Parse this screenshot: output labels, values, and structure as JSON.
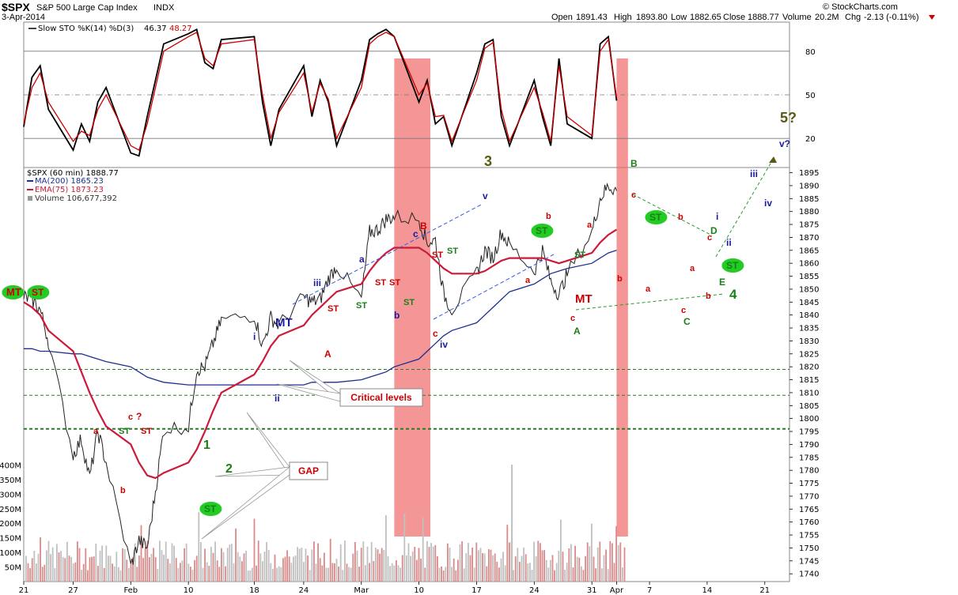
{
  "header": {
    "symbol": "$SPX",
    "name": "S&P 500 Large Cap Index",
    "exchange": "INDX",
    "date": "3-Apr-2014",
    "open_label": "Open",
    "open": "1891.43",
    "high_label": "High",
    "high": "1893.80",
    "low_label": "Low",
    "low": "1882.65",
    "close_label": "Close",
    "close": "1888.77",
    "volume_label": "Volume",
    "volume": "20.2M",
    "chg_label": "Chg",
    "chg": "-2.13 (-0.11%)",
    "watermark": "© StockCharts.com"
  },
  "colors": {
    "price_up": "#000000",
    "price_down": "#cc0000",
    "ma200": "#1f2f8f",
    "ema75": "#cc1a3a",
    "sto_k": "#000000",
    "sto_d": "#cc0000",
    "highlight": "#f06a6a",
    "volume": "#c0c0c0",
    "ellipse": "#22cc22",
    "wave_green": "#1a7f1a",
    "wave_red": "#cc0000",
    "wave_blue": "#1a1aa0",
    "wave_olive": "#5a5a10"
  },
  "chart_data": [
    {
      "type": "line",
      "panel": "Slow Stochastic",
      "legend": "Slow STO %K(14) %D(3) 46.37, 48.27",
      "legend_name": "Slow STO %K(14) %D(3)",
      "legend_k": "46.37",
      "legend_d": "48.27",
      "ylim": [
        0,
        100
      ],
      "yticks": [
        20,
        50,
        80
      ],
      "x": [
        "2014-01-21",
        "2014-01-22",
        "2014-01-23",
        "2014-01-24",
        "2014-01-27",
        "2014-01-28",
        "2014-01-29",
        "2014-01-30",
        "2014-01-31",
        "2014-02-03",
        "2014-02-04",
        "2014-02-05",
        "2014-02-06",
        "2014-02-07",
        "2014-02-10",
        "2014-02-11",
        "2014-02-12",
        "2014-02-13",
        "2014-02-14",
        "2014-02-18",
        "2014-02-19",
        "2014-02-20",
        "2014-02-21",
        "2014-02-24",
        "2014-02-25",
        "2014-02-26",
        "2014-02-27",
        "2014-02-28",
        "2014-03-03",
        "2014-03-04",
        "2014-03-05",
        "2014-03-06",
        "2014-03-07",
        "2014-03-10",
        "2014-03-11",
        "2014-03-12",
        "2014-03-13",
        "2014-03-14",
        "2014-03-17",
        "2014-03-18",
        "2014-03-19",
        "2014-03-20",
        "2014-03-21",
        "2014-03-24",
        "2014-03-25",
        "2014-03-26",
        "2014-03-27",
        "2014-03-28",
        "2014-03-31",
        "2014-04-01",
        "2014-04-02",
        "2014-04-03"
      ],
      "series": [
        {
          "name": "%K",
          "values": [
            28,
            62,
            70,
            40,
            12,
            30,
            18,
            45,
            55,
            10,
            8,
            35,
            60,
            85,
            92,
            95,
            72,
            68,
            88,
            90,
            45,
            15,
            40,
            70,
            35,
            60,
            45,
            15,
            60,
            88,
            92,
            95,
            90,
            45,
            60,
            30,
            35,
            15,
            65,
            85,
            88,
            35,
            15,
            60,
            35,
            15,
            75,
            30,
            20,
            85,
            90,
            46
          ]
        },
        {
          "name": "%D",
          "values": [
            30,
            55,
            65,
            45,
            18,
            25,
            22,
            40,
            50,
            15,
            12,
            30,
            55,
            80,
            90,
            93,
            75,
            70,
            85,
            88,
            50,
            20,
            38,
            65,
            38,
            58,
            47,
            20,
            55,
            85,
            90,
            93,
            90,
            50,
            58,
            35,
            36,
            18,
            60,
            82,
            86,
            40,
            18,
            55,
            38,
            18,
            70,
            35,
            22,
            80,
            88,
            48
          ]
        }
      ]
    },
    {
      "type": "line",
      "panel": "$SPX (60 min)",
      "legend_price": "$SPX (60 min) 1888.77",
      "legend_ma": "MA(200) 1865.23",
      "legend_ema": "EMA(75) 1873.23",
      "legend_vol": "Volume 106,677,392",
      "ylim": [
        1737,
        1897
      ],
      "yticks": [
        1740,
        1745,
        1750,
        1755,
        1760,
        1765,
        1770,
        1775,
        1780,
        1785,
        1790,
        1795,
        1800,
        1805,
        1810,
        1815,
        1820,
        1825,
        1830,
        1835,
        1840,
        1845,
        1850,
        1855,
        1860,
        1865,
        1870,
        1875,
        1880,
        1885,
        1890,
        1895
      ],
      "xticks": [
        "21",
        "27",
        "Feb",
        "10",
        "18",
        "24",
        "Mar",
        "10",
        "17",
        "24",
        "31",
        "Apr",
        "7",
        "14",
        "21"
      ],
      "x": [
        "2014-01-21",
        "2014-01-22",
        "2014-01-23",
        "2014-01-24",
        "2014-01-27",
        "2014-01-28",
        "2014-01-29",
        "2014-01-30",
        "2014-01-31",
        "2014-02-03",
        "2014-02-04",
        "2014-02-05",
        "2014-02-06",
        "2014-02-07",
        "2014-02-10",
        "2014-02-11",
        "2014-02-12",
        "2014-02-13",
        "2014-02-14",
        "2014-02-18",
        "2014-02-19",
        "2014-02-20",
        "2014-02-21",
        "2014-02-24",
        "2014-02-25",
        "2014-02-26",
        "2014-02-27",
        "2014-02-28",
        "2014-03-03",
        "2014-03-04",
        "2014-03-05",
        "2014-03-06",
        "2014-03-07",
        "2014-03-10",
        "2014-03-11",
        "2014-03-12",
        "2014-03-13",
        "2014-03-14",
        "2014-03-17",
        "2014-03-18",
        "2014-03-19",
        "2014-03-20",
        "2014-03-21",
        "2014-03-24",
        "2014-03-25",
        "2014-03-26",
        "2014-03-27",
        "2014-03-28",
        "2014-03-31",
        "2014-04-01",
        "2014-04-02",
        "2014-04-03"
      ],
      "series": [
        {
          "name": "Price",
          "values": [
            1847,
            1846,
            1842,
            1830,
            1786,
            1792,
            1777,
            1795,
            1783,
            1743,
            1753,
            1750,
            1772,
            1796,
            1797,
            1819,
            1820,
            1829,
            1838,
            1840,
            1828,
            1839,
            1836,
            1847,
            1845,
            1846,
            1854,
            1859,
            1846,
            1872,
            1873,
            1877,
            1878,
            1877,
            1868,
            1869,
            1848,
            1842,
            1856,
            1865,
            1862,
            1872,
            1867,
            1857,
            1865,
            1853,
            1848,
            1856,
            1872,
            1885,
            1890,
            1888
          ]
        },
        {
          "name": "MA(200)",
          "values": [
            1827,
            1827,
            1826,
            1826,
            1825,
            1825,
            1824,
            1823,
            1822,
            1820,
            1818,
            1816,
            1815,
            1814,
            1813,
            1813,
            1813,
            1813,
            1813,
            1813,
            1813,
            1813,
            1813,
            1813,
            1814,
            1814,
            1814,
            1814,
            1815,
            1816,
            1817,
            1818,
            1820,
            1823,
            1826,
            1829,
            1832,
            1834,
            1837,
            1840,
            1843,
            1846,
            1849,
            1852,
            1854,
            1856,
            1857,
            1858,
            1860,
            1862,
            1864,
            1865
          ]
        },
        {
          "name": "EMA(75)",
          "values": [
            1845,
            1843,
            1840,
            1834,
            1826,
            1818,
            1810,
            1803,
            1797,
            1790,
            1783,
            1778,
            1777,
            1779,
            1783,
            1788,
            1795,
            1803,
            1810,
            1817,
            1822,
            1828,
            1832,
            1836,
            1840,
            1843,
            1846,
            1849,
            1852,
            1857,
            1861,
            1864,
            1866,
            1866,
            1864,
            1861,
            1858,
            1856,
            1856,
            1857,
            1859,
            1861,
            1862,
            1862,
            1862,
            1861,
            1860,
            1861,
            1864,
            1868,
            1871,
            1873
          ]
        }
      ],
      "volume_axis": {
        "ylim": [
          0,
          450
        ],
        "unit": "M",
        "yticks": [
          "50M",
          "100M",
          "150M",
          "200M",
          "250M",
          "300M",
          "350M",
          "400M"
        ]
      },
      "horizontal_levels": [
        1819,
        1809,
        1796
      ],
      "shaded_zones": [
        [
          "2014-03-07",
          "2014-03-11"
        ],
        [
          "2014-04-03",
          "2014-04-04"
        ]
      ],
      "annotations": {
        "waves_green": [
          "MT",
          "ST",
          "ST",
          "ST",
          "ST",
          "ST",
          "ST",
          "ST",
          "1",
          "2",
          "ST",
          "B",
          "ST",
          "D",
          "E",
          "ST",
          "4",
          "A",
          "C"
        ],
        "waves_red": [
          "a",
          "b",
          "c",
          "?",
          "ST",
          "ST",
          "ST",
          "ST",
          "B",
          "c",
          "a",
          "b",
          "MT",
          "a",
          "c",
          "b",
          "a",
          "b",
          "c",
          "a",
          "c",
          "b"
        ],
        "waves_blue": [
          "MT",
          "i",
          "ii",
          "iii",
          "a",
          "b",
          "c",
          "iv",
          "v",
          "i",
          "ii",
          "iii",
          "iv",
          "v?"
        ],
        "waves_olive": [
          "3",
          "5?"
        ],
        "callouts": [
          "Critical levels",
          "GAP"
        ]
      }
    }
  ]
}
